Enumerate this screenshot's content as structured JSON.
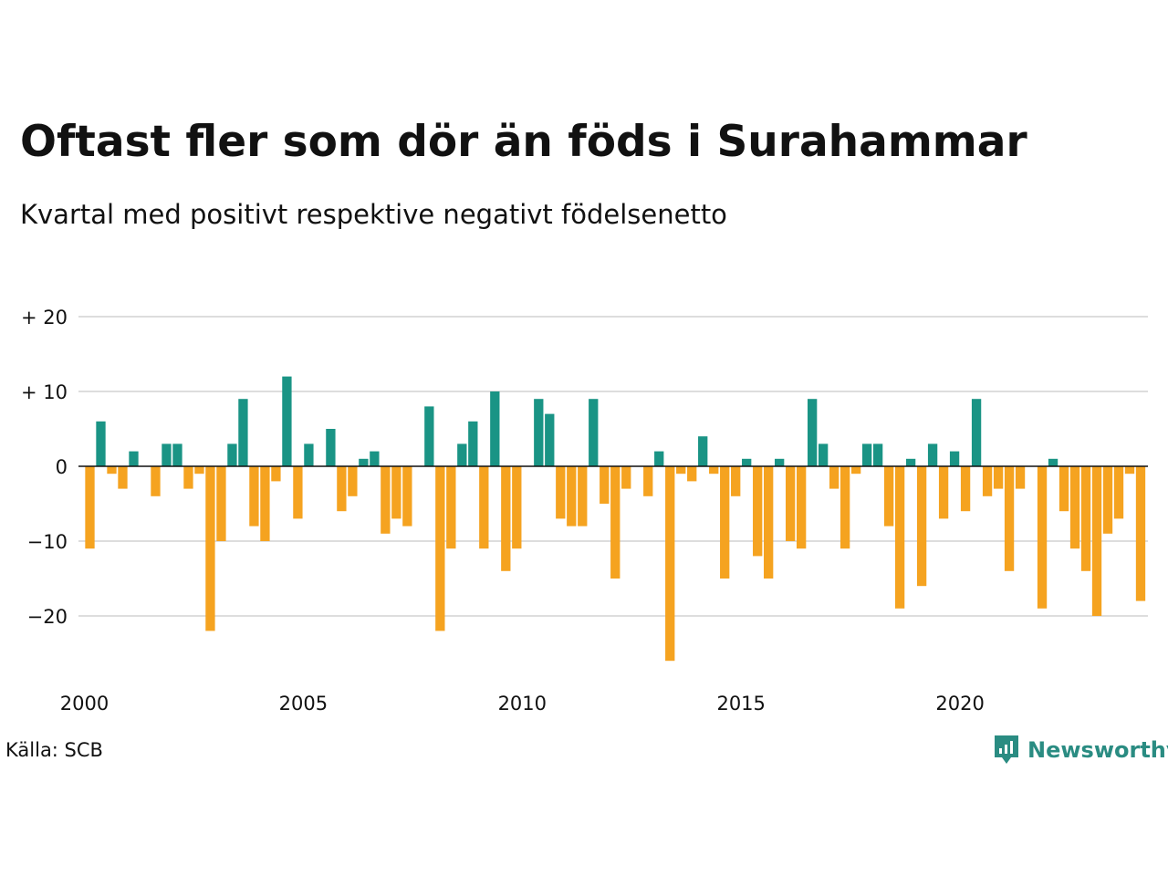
{
  "title": "Oftast fler som dör än föds i Surahammar",
  "subtitle": "Kvartal med positivt respektive negativt födelsenetto",
  "source": "Källa: SCB",
  "brand": {
    "name": "Newsworthy",
    "icon": "newsworthy-logo-icon",
    "color": "#2a8c82"
  },
  "chart_data": {
    "type": "bar",
    "title": "",
    "xlabel": "",
    "ylabel": "",
    "ylim": [
      -28,
      22
    ],
    "xlim": [
      2000,
      2024.25
    ],
    "grid": true,
    "legend": "none",
    "colors": {
      "positive": "#1a9485",
      "negative": "#f5a320",
      "gridline": "#dddddd",
      "zeroline": "#111111"
    },
    "y_ticks": [
      {
        "value": 20,
        "label": "+ 20"
      },
      {
        "value": 10,
        "label": "+ 10"
      },
      {
        "value": 0,
        "label": "0"
      },
      {
        "value": -10,
        "label": "−10"
      },
      {
        "value": -20,
        "label": "−20"
      }
    ],
    "x_ticks": [
      {
        "value": 2000,
        "label": "2000"
      },
      {
        "value": 2005,
        "label": "2005"
      },
      {
        "value": 2010,
        "label": "2010"
      },
      {
        "value": 2015,
        "label": "2015"
      },
      {
        "value": 2020,
        "label": "2020"
      }
    ],
    "start_year": 2000,
    "categories": [
      "2000 Q1",
      "2000 Q2",
      "2000 Q3",
      "2000 Q4",
      "2001 Q1",
      "2001 Q2",
      "2001 Q3",
      "2001 Q4",
      "2002 Q1",
      "2002 Q2",
      "2002 Q3",
      "2002 Q4",
      "2003 Q1",
      "2003 Q2",
      "2003 Q3",
      "2003 Q4",
      "2004 Q1",
      "2004 Q2",
      "2004 Q3",
      "2004 Q4",
      "2005 Q1",
      "2005 Q2",
      "2005 Q3",
      "2005 Q4",
      "2006 Q1",
      "2006 Q2",
      "2006 Q3",
      "2006 Q4",
      "2007 Q1",
      "2007 Q2",
      "2007 Q3",
      "2007 Q4",
      "2008 Q1",
      "2008 Q2",
      "2008 Q3",
      "2008 Q4",
      "2009 Q1",
      "2009 Q2",
      "2009 Q3",
      "2009 Q4",
      "2010 Q1",
      "2010 Q2",
      "2010 Q3",
      "2010 Q4",
      "2011 Q1",
      "2011 Q2",
      "2011 Q3",
      "2011 Q4",
      "2012 Q1",
      "2012 Q2",
      "2012 Q3",
      "2012 Q4",
      "2013 Q1",
      "2013 Q2",
      "2013 Q3",
      "2013 Q4",
      "2014 Q1",
      "2014 Q2",
      "2014 Q3",
      "2014 Q4",
      "2015 Q1",
      "2015 Q2",
      "2015 Q3",
      "2015 Q4",
      "2016 Q1",
      "2016 Q2",
      "2016 Q3",
      "2016 Q4",
      "2017 Q1",
      "2017 Q2",
      "2017 Q3",
      "2017 Q4",
      "2018 Q1",
      "2018 Q2",
      "2018 Q3",
      "2018 Q4",
      "2019 Q1",
      "2019 Q2",
      "2019 Q3",
      "2019 Q4",
      "2020 Q1",
      "2020 Q2",
      "2020 Q3",
      "2020 Q4",
      "2021 Q1",
      "2021 Q2",
      "2021 Q3",
      "2021 Q4",
      "2022 Q1",
      "2022 Q2",
      "2022 Q3",
      "2022 Q4",
      "2023 Q1",
      "2023 Q2",
      "2023 Q3",
      "2023 Q4",
      "2024 Q1"
    ],
    "values": [
      -11,
      6,
      -1,
      -3,
      2,
      0,
      -4,
      3,
      3,
      -3,
      -1,
      -22,
      -10,
      3,
      9,
      -8,
      -10,
      -2,
      12,
      -7,
      3,
      0,
      5,
      -6,
      -4,
      1,
      2,
      -9,
      -7,
      -8,
      0,
      8,
      -22,
      -11,
      3,
      6,
      -11,
      10,
      -14,
      -11,
      0,
      9,
      7,
      -7,
      -8,
      -8,
      9,
      -5,
      -15,
      -3,
      0,
      -4,
      2,
      -26,
      -1,
      -2,
      4,
      -1,
      -15,
      -4,
      1,
      -12,
      -15,
      1,
      -10,
      -11,
      9,
      3,
      -3,
      -11,
      -1,
      3,
      3,
      -8,
      -19,
      1,
      -16,
      3,
      -7,
      2,
      -6,
      9,
      -4,
      -3,
      -14,
      -3,
      0,
      -19,
      1,
      -6,
      -11,
      -14,
      -20,
      -9,
      -7,
      -1,
      -18
    ]
  }
}
